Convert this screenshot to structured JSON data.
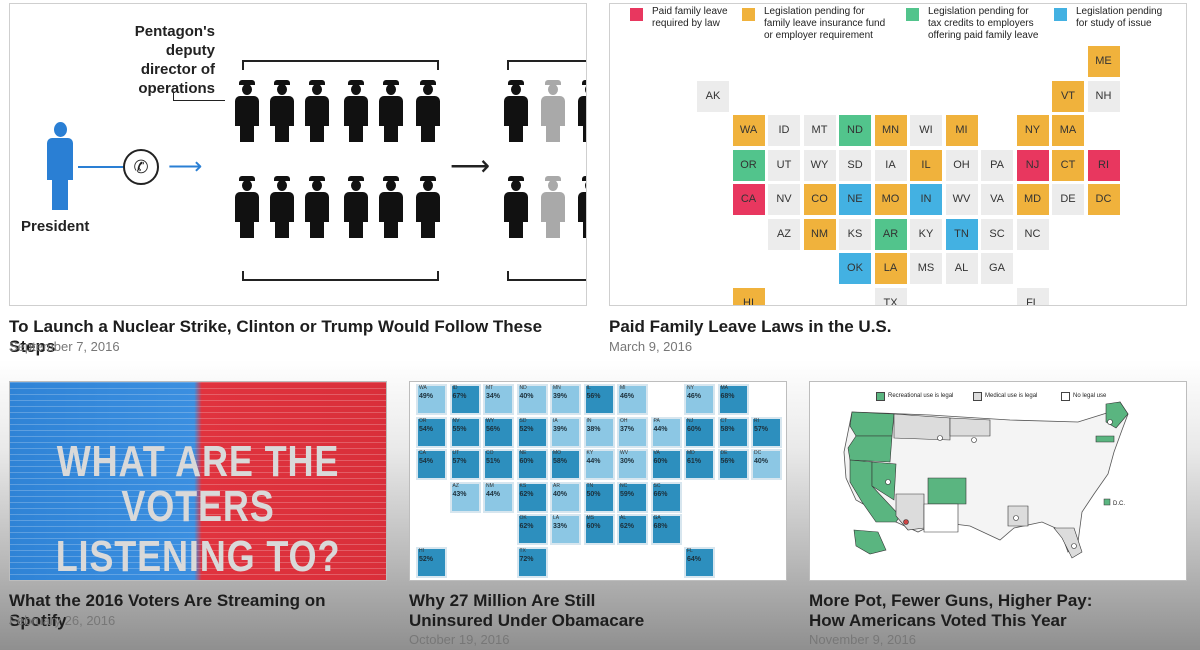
{
  "cards": [
    {
      "title": "To Launch a Nuclear Strike, Clinton or Trump Would Follow These Steps",
      "date": "September 7, 2016"
    },
    {
      "title": "Paid Family Leave Laws in the U.S.",
      "date": "March 9, 2016"
    },
    {
      "title": "What the 2016 Voters Are Streaming on Spotify",
      "date": "February 26, 2016"
    },
    {
      "title_line1": "Why 27 Million Are Still",
      "title_line2": "Uninsured Under Obamacare",
      "date": "October 19, 2016"
    },
    {
      "title_line1": "More Pot, Fewer Guns, Higher Pay:",
      "title_line2": "How Americans Voted This Year",
      "date": "November 9, 2016"
    }
  ],
  "nuclear": {
    "label_lines": [
      "Pentagon's",
      "deputy",
      "director of",
      "operations"
    ],
    "president": "President"
  },
  "leave_map": {
    "legend": [
      {
        "line1": "Paid family leave",
        "line2": "required by law",
        "line3": "",
        "color": "#e8375f"
      },
      {
        "line1": "Legislation pending for",
        "line2": "family leave insurance fund",
        "line3": "or employer requirement",
        "color": "#f0b23c"
      },
      {
        "line1": "Legislation pending for",
        "line2": "tax credits to employers",
        "line3": "offering paid family leave",
        "color": "#52c48c"
      },
      {
        "line1": "Legislation pending",
        "line2": "for study of issue",
        "line3": "",
        "color": "#43b1e2"
      }
    ],
    "tiles": [
      {
        "s": "ME",
        "c": "y"
      },
      {
        "s": "AK",
        "c": "g"
      },
      {
        "s": "VT",
        "c": "y"
      },
      {
        "s": "NH",
        "c": "g"
      },
      {
        "s": "WA",
        "c": "y"
      },
      {
        "s": "ID",
        "c": "g"
      },
      {
        "s": "MT",
        "c": "g"
      },
      {
        "s": "ND",
        "c": "gr"
      },
      {
        "s": "MN",
        "c": "y"
      },
      {
        "s": "WI",
        "c": "g"
      },
      {
        "s": "MI",
        "c": "y"
      },
      {
        "s": "NY",
        "c": "y"
      },
      {
        "s": "MA",
        "c": "y"
      },
      {
        "s": "OR",
        "c": "gr"
      },
      {
        "s": "UT",
        "c": "g"
      },
      {
        "s": "WY",
        "c": "g"
      },
      {
        "s": "SD",
        "c": "g"
      },
      {
        "s": "IA",
        "c": "g"
      },
      {
        "s": "IL",
        "c": "y"
      },
      {
        "s": "OH",
        "c": "g"
      },
      {
        "s": "PA",
        "c": "g"
      },
      {
        "s": "NJ",
        "c": "r"
      },
      {
        "s": "CT",
        "c": "y"
      },
      {
        "s": "RI",
        "c": "r"
      },
      {
        "s": "CA",
        "c": "r"
      },
      {
        "s": "NV",
        "c": "g"
      },
      {
        "s": "CO",
        "c": "y"
      },
      {
        "s": "NE",
        "c": "b"
      },
      {
        "s": "MO",
        "c": "y"
      },
      {
        "s": "IN",
        "c": "b"
      },
      {
        "s": "WV",
        "c": "g"
      },
      {
        "s": "VA",
        "c": "g"
      },
      {
        "s": "MD",
        "c": "y"
      },
      {
        "s": "DE",
        "c": "g"
      },
      {
        "s": "DC",
        "c": "y"
      },
      {
        "s": "AZ",
        "c": "g"
      },
      {
        "s": "NM",
        "c": "y"
      },
      {
        "s": "KS",
        "c": "g"
      },
      {
        "s": "AR",
        "c": "gr"
      },
      {
        "s": "KY",
        "c": "g"
      },
      {
        "s": "TN",
        "c": "b"
      },
      {
        "s": "SC",
        "c": "g"
      },
      {
        "s": "NC",
        "c": "g"
      },
      {
        "s": "OK",
        "c": "b"
      },
      {
        "s": "LA",
        "c": "y"
      },
      {
        "s": "MS",
        "c": "g"
      },
      {
        "s": "AL",
        "c": "g"
      },
      {
        "s": "GA",
        "c": "g"
      },
      {
        "s": "HI",
        "c": "y"
      },
      {
        "s": "TX",
        "c": "g"
      },
      {
        "s": "FL",
        "c": "g"
      }
    ]
  },
  "spotify": {
    "line1": "WHAT ARE THE",
    "line2": "VOTERS LISTENING TO?"
  },
  "obamacare": [
    {
      "s": "WA",
      "p": "49%"
    },
    {
      "s": "ID",
      "p": "67%"
    },
    {
      "s": "MT",
      "p": "34%"
    },
    {
      "s": "ND",
      "p": "40%"
    },
    {
      "s": "MN",
      "p": "39%"
    },
    {
      "s": "IL",
      "p": "56%"
    },
    {
      "s": "MI",
      "p": "46%"
    },
    {
      "s": "NY",
      "p": "46%"
    },
    {
      "s": "MA",
      "p": "68%"
    },
    {
      "s": "OR",
      "p": "54%"
    },
    {
      "s": "NV",
      "p": "55%"
    },
    {
      "s": "WY",
      "p": "56%"
    },
    {
      "s": "SD",
      "p": "52%"
    },
    {
      "s": "IA",
      "p": "39%"
    },
    {
      "s": "IN",
      "p": "38%"
    },
    {
      "s": "OH",
      "p": "37%"
    },
    {
      "s": "PA",
      "p": "44%"
    },
    {
      "s": "NJ",
      "p": "60%"
    },
    {
      "s": "CT",
      "p": "58%"
    },
    {
      "s": "RI",
      "p": "57%"
    },
    {
      "s": "CA",
      "p": "54%"
    },
    {
      "s": "UT",
      "p": "57%"
    },
    {
      "s": "CO",
      "p": "51%"
    },
    {
      "s": "NE",
      "p": "60%"
    },
    {
      "s": "MO",
      "p": "58%"
    },
    {
      "s": "KY",
      "p": "44%"
    },
    {
      "s": "WV",
      "p": "30%"
    },
    {
      "s": "VA",
      "p": "60%"
    },
    {
      "s": "MD",
      "p": "61%"
    },
    {
      "s": "DE",
      "p": "56%"
    },
    {
      "s": "DC",
      "p": "40%"
    },
    {
      "s": "AZ",
      "p": "43%"
    },
    {
      "s": "NM",
      "p": "44%"
    },
    {
      "s": "KS",
      "p": "62%"
    },
    {
      "s": "AR",
      "p": "40%"
    },
    {
      "s": "TN",
      "p": "50%"
    },
    {
      "s": "NC",
      "p": "59%"
    },
    {
      "s": "SC",
      "p": "66%"
    },
    {
      "s": "OK",
      "p": "62%"
    },
    {
      "s": "LA",
      "p": "33%"
    },
    {
      "s": "MS",
      "p": "60%"
    },
    {
      "s": "AL",
      "p": "62%"
    },
    {
      "s": "GA",
      "p": "68%"
    },
    {
      "s": "HI",
      "p": "52%"
    },
    {
      "s": "TX",
      "p": "72%"
    },
    {
      "s": "FL",
      "p": "64%"
    }
  ],
  "pot": {
    "legend": [
      "Recreational use is legal",
      "Medical use is legal",
      "No legal use"
    ],
    "dc_label": "D.C.",
    "colors": {
      "rec": "#5ab580",
      "med": "#dcdcdc",
      "none": "#ffffff"
    }
  }
}
